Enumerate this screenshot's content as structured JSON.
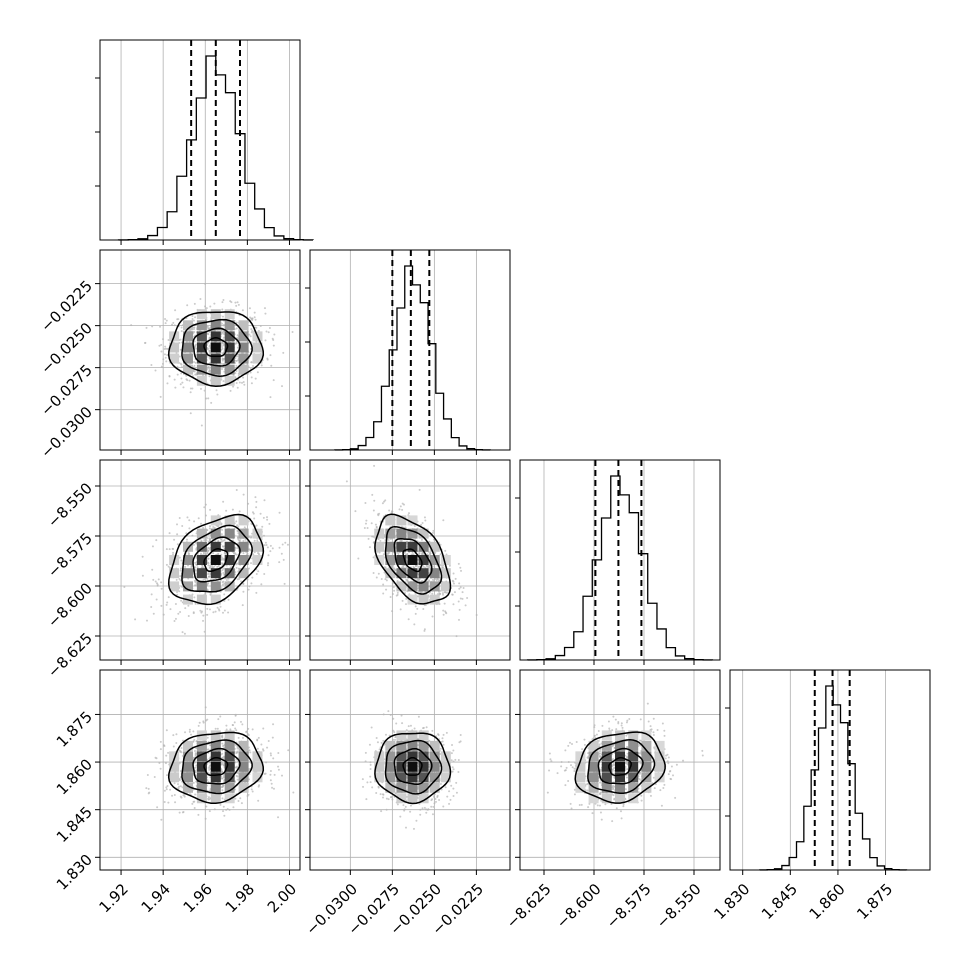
{
  "chart_data": {
    "type": "corner",
    "grid": true,
    "quantiles": [
      0.16,
      0.5,
      0.84
    ],
    "parameters": [
      {
        "mean": 1.965,
        "sigma": 0.011,
        "range": [
          1.91,
          2.005
        ],
        "ticks": [
          1.92,
          1.94,
          1.96,
          1.98,
          2.0
        ],
        "tick_labels": [
          "1.92",
          "1.94",
          "1.96",
          "1.98",
          "2.00"
        ]
      },
      {
        "mean": -0.0263,
        "sigma": 0.0011,
        "range": [
          -0.0324,
          -0.0205
        ],
        "ticks": [
          -0.03,
          -0.0275,
          -0.025,
          -0.0225
        ],
        "tick_labels": [
          "−0.0300",
          "−0.0275",
          "−0.0250",
          "−0.0225"
        ]
      },
      {
        "mean": -8.587,
        "sigma": 0.011,
        "range": [
          -8.637,
          -8.537
        ],
        "ticks": [
          -8.625,
          -8.6,
          -8.575,
          -8.55
        ],
        "tick_labels": [
          "−8.625",
          "−8.600",
          "−8.575",
          "−8.550"
        ]
      },
      {
        "mean": 1.8585,
        "sigma": 0.0055,
        "range": [
          1.826,
          1.889
        ],
        "ticks": [
          1.83,
          1.845,
          1.86,
          1.875
        ],
        "tick_labels": [
          "1.830",
          "1.845",
          "1.860",
          "1.875"
        ]
      }
    ],
    "quantile_values": [
      [
        1.9533,
        1.965,
        1.9765
      ],
      [
        -0.0275,
        -0.0264,
        -0.0253
      ],
      [
        -8.5993,
        -8.5878,
        -8.5763
      ],
      [
        1.8527,
        1.8583,
        1.8637
      ]
    ],
    "correlations": [
      {
        "row": 1,
        "col": 0,
        "rho": 0.0
      },
      {
        "row": 2,
        "col": 0,
        "rho": 0.35
      },
      {
        "row": 2,
        "col": 1,
        "rho": -0.45
      },
      {
        "row": 3,
        "col": 0,
        "rho": 0.1
      },
      {
        "row": 3,
        "col": 1,
        "rho": 0.0
      },
      {
        "row": 3,
        "col": 2,
        "rho": 0.15
      }
    ]
  },
  "colors": {
    "ink": "#000000",
    "points": "#b5b5b5",
    "grid": "#b0b0b0",
    "background": "#ffffff"
  }
}
